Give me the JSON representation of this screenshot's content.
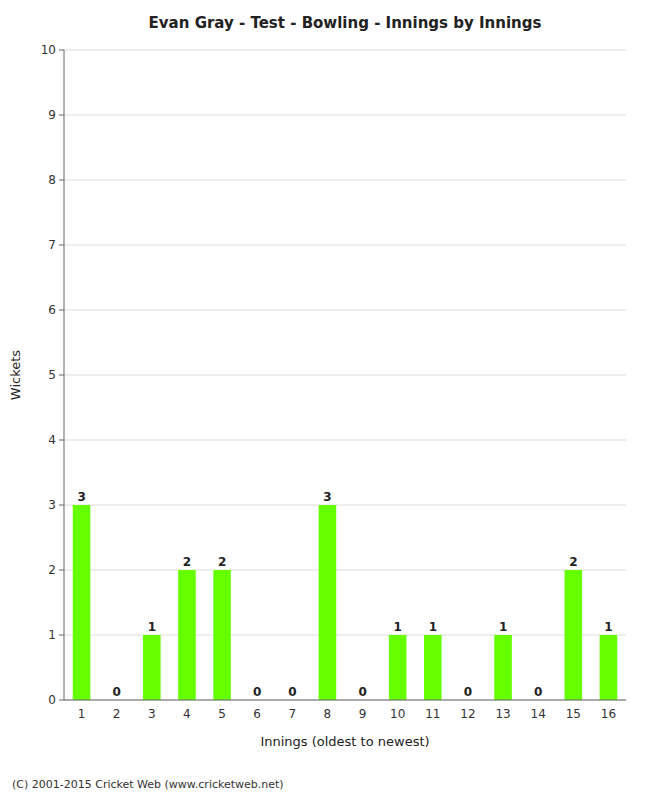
{
  "chart_data": {
    "type": "bar",
    "title": "Evan Gray - Test - Bowling - Innings by Innings",
    "x_label": "Innings (oldest to newest)",
    "y_label": "Wickets",
    "categories": [
      "1",
      "2",
      "3",
      "4",
      "5",
      "6",
      "7",
      "8",
      "9",
      "10",
      "11",
      "12",
      "13",
      "14",
      "15",
      "16"
    ],
    "values": [
      3,
      0,
      1,
      2,
      2,
      0,
      0,
      3,
      0,
      1,
      1,
      0,
      1,
      0,
      2,
      1
    ],
    "color": "#66ff00",
    "ylim": [
      0,
      10
    ],
    "yticks": [
      0,
      1,
      2,
      3,
      4,
      5,
      6,
      7,
      8,
      9,
      10
    ],
    "grid": true,
    "data_labels": true,
    "annotations": [
      "(C) 2001-2015 Cricket Web (www.cricketweb.net)"
    ]
  }
}
